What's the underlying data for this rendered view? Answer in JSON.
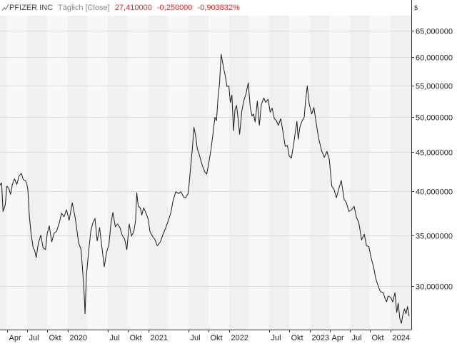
{
  "header": {
    "instrument_icon": "line-chart-icon",
    "instrument": "PFIZER INC",
    "period": "Täglich [Close]",
    "last": "27,410000",
    "change": "-0,250000",
    "change_pct": "-0,903832%"
  },
  "colors": {
    "change": "#d42a2a",
    "line": "#1a1a1a",
    "band_dark": "#f0f0f0",
    "band_light": "#f8f8f8",
    "grid": "#dcdcdc",
    "axis": "#333333"
  },
  "chart_data": {
    "type": "line",
    "title": "",
    "xlabel": "",
    "ylabel": "",
    "y_unit": "$",
    "y_scale": "log",
    "ylim": [
      26.3,
      68.0
    ],
    "xlim": [
      "2019-03-01",
      "2024-04-05"
    ],
    "y_ticks": [
      {
        "value": 30,
        "label": "30,000000"
      },
      {
        "value": 35,
        "label": "35,000000"
      },
      {
        "value": 40,
        "label": "40,000000"
      },
      {
        "value": 45,
        "label": "45,000000"
      },
      {
        "value": 50,
        "label": "50,000000"
      },
      {
        "value": 55,
        "label": "55,000000"
      },
      {
        "value": 60,
        "label": "60,000000"
      },
      {
        "value": 65,
        "label": "65,000000"
      }
    ],
    "x_ticks": [
      {
        "date": "2019-04-01",
        "label": "Apr"
      },
      {
        "date": "2019-07-01",
        "label": "Jul"
      },
      {
        "date": "2019-10-01",
        "label": "Okt"
      },
      {
        "date": "2020-01-01",
        "label": "2020"
      },
      {
        "date": "2020-07-01",
        "label": "Jul"
      },
      {
        "date": "2020-10-01",
        "label": "Okt"
      },
      {
        "date": "2021-01-01",
        "label": "2021"
      },
      {
        "date": "2021-07-01",
        "label": "Jul"
      },
      {
        "date": "2021-10-01",
        "label": "Okt"
      },
      {
        "date": "2022-01-01",
        "label": "2022"
      },
      {
        "date": "2022-07-01",
        "label": "Jul"
      },
      {
        "date": "2022-10-01",
        "label": "Okt"
      },
      {
        "date": "2023-01-01",
        "label": "2023"
      },
      {
        "date": "2023-04-01",
        "label": "Apr"
      },
      {
        "date": "2023-07-01",
        "label": "Jul"
      },
      {
        "date": "2023-10-01",
        "label": "Okt"
      },
      {
        "date": "2024-01-01",
        "label": "2024"
      }
    ],
    "bands": [
      "2019-03-01",
      "2019-04-01",
      "2019-07-01",
      "2019-10-01",
      "2020-01-01",
      "2020-04-01",
      "2020-07-01",
      "2020-10-01",
      "2021-01-01",
      "2021-04-01",
      "2021-07-01",
      "2021-10-01",
      "2022-01-01",
      "2022-04-01",
      "2022-07-01",
      "2022-10-01",
      "2023-01-01",
      "2023-04-01",
      "2023-07-01",
      "2023-10-01",
      "2024-01-01",
      "2024-04-05"
    ],
    "grid": true,
    "legend": "none",
    "series": [
      {
        "x": [
          "2019-03-01",
          "2019-03-08",
          "2019-03-15",
          "2019-03-25",
          "2019-04-01",
          "2019-04-10",
          "2019-04-18",
          "2019-04-26",
          "2019-05-06",
          "2019-05-16",
          "2019-05-27",
          "2019-06-06",
          "2019-06-14",
          "2019-06-24",
          "2019-07-01",
          "2019-07-05",
          "2019-07-12",
          "2019-07-19",
          "2019-07-29",
          "2019-08-05",
          "2019-08-12",
          "2019-08-22",
          "2019-09-02",
          "2019-09-12",
          "2019-09-23",
          "2019-10-01",
          "2019-10-10",
          "2019-10-21",
          "2019-11-01",
          "2019-11-12",
          "2019-11-25",
          "2019-12-05",
          "2019-12-16",
          "2019-12-27",
          "2020-01-08",
          "2020-01-22",
          "2020-02-05",
          "2020-02-20",
          "2020-03-02",
          "2020-03-10",
          "2020-03-16",
          "2020-03-20",
          "2020-03-26",
          "2020-04-06",
          "2020-04-15",
          "2020-04-24",
          "2020-05-04",
          "2020-05-14",
          "2020-05-25",
          "2020-06-04",
          "2020-06-15",
          "2020-06-25",
          "2020-07-06",
          "2020-07-15",
          "2020-07-24",
          "2020-08-04",
          "2020-08-14",
          "2020-08-25",
          "2020-09-04",
          "2020-09-15",
          "2020-09-25",
          "2020-10-06",
          "2020-10-16",
          "2020-10-27",
          "2020-11-04",
          "2020-11-09",
          "2020-11-16",
          "2020-11-25",
          "2020-12-02",
          "2020-12-10",
          "2020-12-18",
          "2020-12-30",
          "2021-01-08",
          "2021-01-19",
          "2021-01-29",
          "2021-02-10",
          "2021-02-24",
          "2021-03-08",
          "2021-03-19",
          "2021-03-31",
          "2021-04-12",
          "2021-04-23",
          "2021-05-05",
          "2021-05-18",
          "2021-05-28",
          "2021-06-09",
          "2021-06-18",
          "2021-06-30",
          "2021-07-09",
          "2021-07-19",
          "2021-07-26",
          "2021-08-03",
          "2021-08-10",
          "2021-08-18",
          "2021-08-25",
          "2021-09-02",
          "2021-09-13",
          "2021-09-22",
          "2021-10-01",
          "2021-10-11",
          "2021-10-20",
          "2021-10-29",
          "2021-11-05",
          "2021-11-12",
          "2021-11-19",
          "2021-11-26",
          "2021-12-03",
          "2021-12-10",
          "2021-12-16",
          "2021-12-22",
          "2021-12-31",
          "2022-01-07",
          "2022-01-14",
          "2022-01-21",
          "2022-01-28",
          "2022-02-04",
          "2022-02-11",
          "2022-02-18",
          "2022-02-28",
          "2022-03-09",
          "2022-03-18",
          "2022-03-29",
          "2022-04-07",
          "2022-04-15",
          "2022-04-22",
          "2022-04-29",
          "2022-05-09",
          "2022-05-18",
          "2022-05-27",
          "2022-06-07",
          "2022-06-16",
          "2022-06-27",
          "2022-07-06",
          "2022-07-15",
          "2022-07-25",
          "2022-08-03",
          "2022-08-12",
          "2022-08-23",
          "2022-09-01",
          "2022-09-12",
          "2022-09-22",
          "2022-09-30",
          "2022-10-10",
          "2022-10-19",
          "2022-10-27",
          "2022-11-04",
          "2022-11-10",
          "2022-11-18",
          "2022-11-28",
          "2022-12-07",
          "2022-12-14",
          "2022-12-21",
          "2022-12-30",
          "2023-01-10",
          "2023-01-20",
          "2023-01-31",
          "2023-02-10",
          "2023-02-24",
          "2023-03-08",
          "2023-03-20",
          "2023-03-31",
          "2023-04-11",
          "2023-04-21",
          "2023-05-02",
          "2023-05-12",
          "2023-05-24",
          "2023-06-06",
          "2023-06-16",
          "2023-06-27",
          "2023-07-10",
          "2023-07-21",
          "2023-08-01",
          "2023-08-11",
          "2023-08-24",
          "2023-09-05",
          "2023-09-15",
          "2023-09-26",
          "2023-10-06",
          "2023-10-17",
          "2023-10-27",
          "2023-11-07",
          "2023-11-17",
          "2023-11-30",
          "2023-12-08",
          "2023-12-15",
          "2023-12-22",
          "2024-01-03",
          "2024-01-12",
          "2024-01-22",
          "2024-01-30",
          "2024-02-06",
          "2024-02-13",
          "2024-02-20",
          "2024-02-27",
          "2024-03-05",
          "2024-03-12",
          "2024-03-19",
          "2024-03-26"
        ],
        "y": [
          40.7,
          41.0,
          37.6,
          38.4,
          40.6,
          40.3,
          39.6,
          40.8,
          41.5,
          40.8,
          41.9,
          42.2,
          41.4,
          41.3,
          40.8,
          40.2,
          37.1,
          35.3,
          33.7,
          33.4,
          32.7,
          34.2,
          35.0,
          33.7,
          33.5,
          35.2,
          36.0,
          34.3,
          35.2,
          35.4,
          36.4,
          37.4,
          37.0,
          37.8,
          36.6,
          38.6,
          36.8,
          34.2,
          33.5,
          31.2,
          29.3,
          27.6,
          31.0,
          33.5,
          35.4,
          36.3,
          36.8,
          34.4,
          35.8,
          33.8,
          31.8,
          33.2,
          34.0,
          36.2,
          37.5,
          35.9,
          36.2,
          35.8,
          35.0,
          34.6,
          33.5,
          36.2,
          34.9,
          35.4,
          36.6,
          39.8,
          38.2,
          38.0,
          37.2,
          38.0,
          37.6,
          36.8,
          35.4,
          34.9,
          34.6,
          33.9,
          34.3,
          35.1,
          35.7,
          36.5,
          37.4,
          38.9,
          39.9,
          39.7,
          39.9,
          39.3,
          39.2,
          39.7,
          42.3,
          45.5,
          48.5,
          47.2,
          45.5,
          44.8,
          44.0,
          43.2,
          42.4,
          42.1,
          43.5,
          45.3,
          47.5,
          50.0,
          49.5,
          53.0,
          55.5,
          60.5,
          59.0,
          57.5,
          56.5,
          54.9,
          55.0,
          52.3,
          53.5,
          48.0,
          51.2,
          51.8,
          49.8,
          47.5,
          51.0,
          52.6,
          53.6,
          55.5,
          51.5,
          50.2,
          50.5,
          49.3,
          52.5,
          48.8,
          52.0,
          53.0,
          52.3,
          52.8,
          50.8,
          51.4,
          49.8,
          49.5,
          48.8,
          49.8,
          48.0,
          45.8,
          45.9,
          44.5,
          44.2,
          45.8,
          47.6,
          49.4,
          46.8,
          48.6,
          49.5,
          50.0,
          52.7,
          55.0,
          52.0,
          50.5,
          51.5,
          49.0,
          47.0,
          45.2,
          44.3,
          45.1,
          44.0,
          40.6,
          40.2,
          39.2,
          40.2,
          41.3,
          39.0,
          38.6,
          37.6,
          37.8,
          38.2,
          36.9,
          36.4,
          34.5,
          35.1,
          33.9,
          33.8,
          32.7,
          31.8,
          30.7,
          30.0,
          29.5,
          29.4,
          28.9,
          28.6,
          29.1,
          29.0,
          28.6,
          29.4,
          27.7,
          28.5,
          27.2,
          26.8,
          27.5,
          28.0,
          27.6,
          28.2,
          27.4
        ]
      }
    ]
  }
}
